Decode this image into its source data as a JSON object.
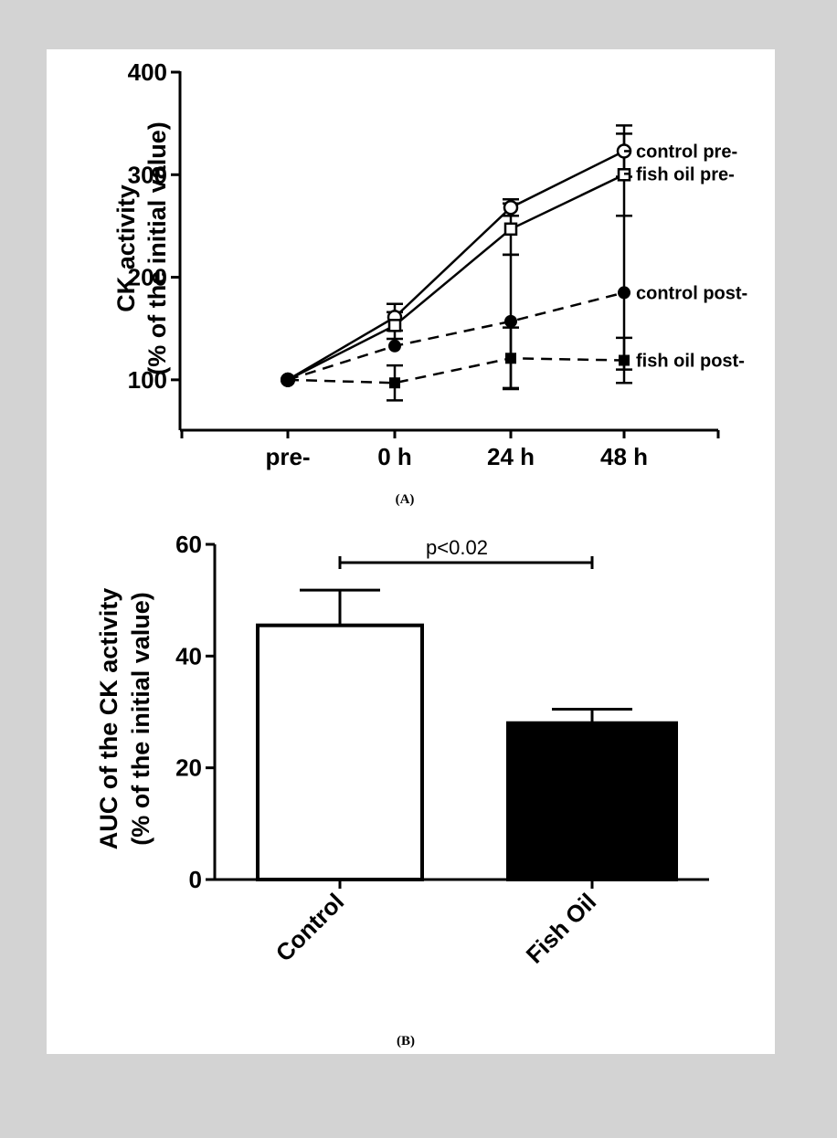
{
  "colors": {
    "background": "#d3d3d3",
    "panel": "#ffffff",
    "ink": "#000000"
  },
  "chart_data": [
    {
      "type": "line",
      "panel_label": "(A)",
      "ylabel_line1": "CK activity",
      "ylabel_line2": "(% of the initial value)",
      "xlabel": "",
      "categories": [
        "pre-",
        "0 h",
        "24 h",
        "48 h"
      ],
      "ylim": [
        50,
        400
      ],
      "yticks": [
        100,
        200,
        300,
        400
      ],
      "grid": false,
      "series": [
        {
          "name": "control pre-",
          "values": [
            100,
            161,
            268,
            323
          ],
          "errors": [
            0,
            13,
            8,
            25
          ],
          "marker": "open-circle",
          "line": "solid"
        },
        {
          "name": "fish oil pre-",
          "values": [
            100,
            153,
            247,
            300
          ],
          "errors": [
            0,
            13,
            25,
            40
          ],
          "marker": "open-square",
          "line": "solid"
        },
        {
          "name": "control post-",
          "values": [
            100,
            133,
            157,
            185
          ],
          "errors": [
            0,
            0,
            65,
            75
          ],
          "marker": "filled-circle",
          "line": "dashed"
        },
        {
          "name": "fish oil post-",
          "values": [
            100,
            97,
            121,
            119
          ],
          "errors": [
            0,
            17,
            30,
            22
          ],
          "marker": "filled-square",
          "line": "dashed"
        }
      ]
    },
    {
      "type": "bar",
      "panel_label": "(B)",
      "ylabel_line1": "AUC of the CK activity",
      "ylabel_line2": "(% of the initial value)",
      "xlabel": "",
      "categories": [
        "Control",
        "Fish Oil"
      ],
      "values": [
        45.5,
        28
      ],
      "errors": [
        6.3,
        2.5
      ],
      "fills": [
        "#ffffff",
        "#000000"
      ],
      "ylim": [
        0,
        60
      ],
      "yticks": [
        0,
        20,
        40,
        60
      ],
      "significance": "p<0.02",
      "grid": false
    }
  ]
}
